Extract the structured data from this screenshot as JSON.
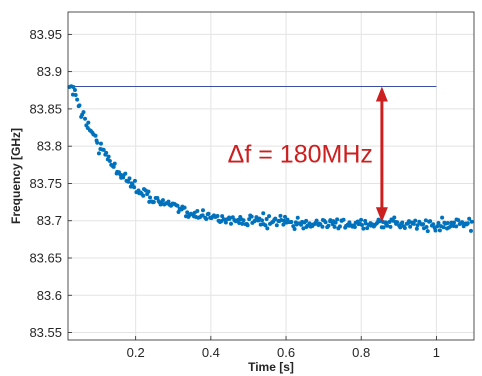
{
  "chart_data": {
    "type": "scatter",
    "xlabel": "Time [s]",
    "ylabel": "Frequency [GHz]",
    "xlim": [
      0.02,
      1.1
    ],
    "ylim": [
      83.54,
      83.98
    ],
    "xticks": [
      0.2,
      0.4,
      0.6,
      0.8,
      1
    ],
    "xtick_labels": [
      "0.2",
      "0.4",
      "0.6",
      "0.8",
      "1"
    ],
    "yticks": [
      83.55,
      83.6,
      83.65,
      83.7,
      83.75,
      83.8,
      83.85,
      83.9,
      83.95
    ],
    "ytick_labels": [
      "83.55",
      "83.6",
      "83.65",
      "83.7",
      "83.75",
      "83.8",
      "83.85",
      "83.9",
      "83.95"
    ],
    "grid": true,
    "series": [
      {
        "color": "#0072bd",
        "model": {
          "asymptote": 83.695,
          "amplitude": 0.185,
          "tau": 0.13,
          "t0": 0.03
        },
        "x_range": [
          0.025,
          1.095
        ],
        "n_points": 320
      }
    ],
    "reference_line": {
      "y": 83.88,
      "x_range": [
        0.025,
        1.0
      ],
      "color": "#3a4fa8"
    },
    "annotation": {
      "text": "Δf = 180MHz",
      "color": "#cc1f1f",
      "arrow_x": 0.855,
      "arrow_y_range": [
        83.698,
        83.88
      ]
    }
  }
}
